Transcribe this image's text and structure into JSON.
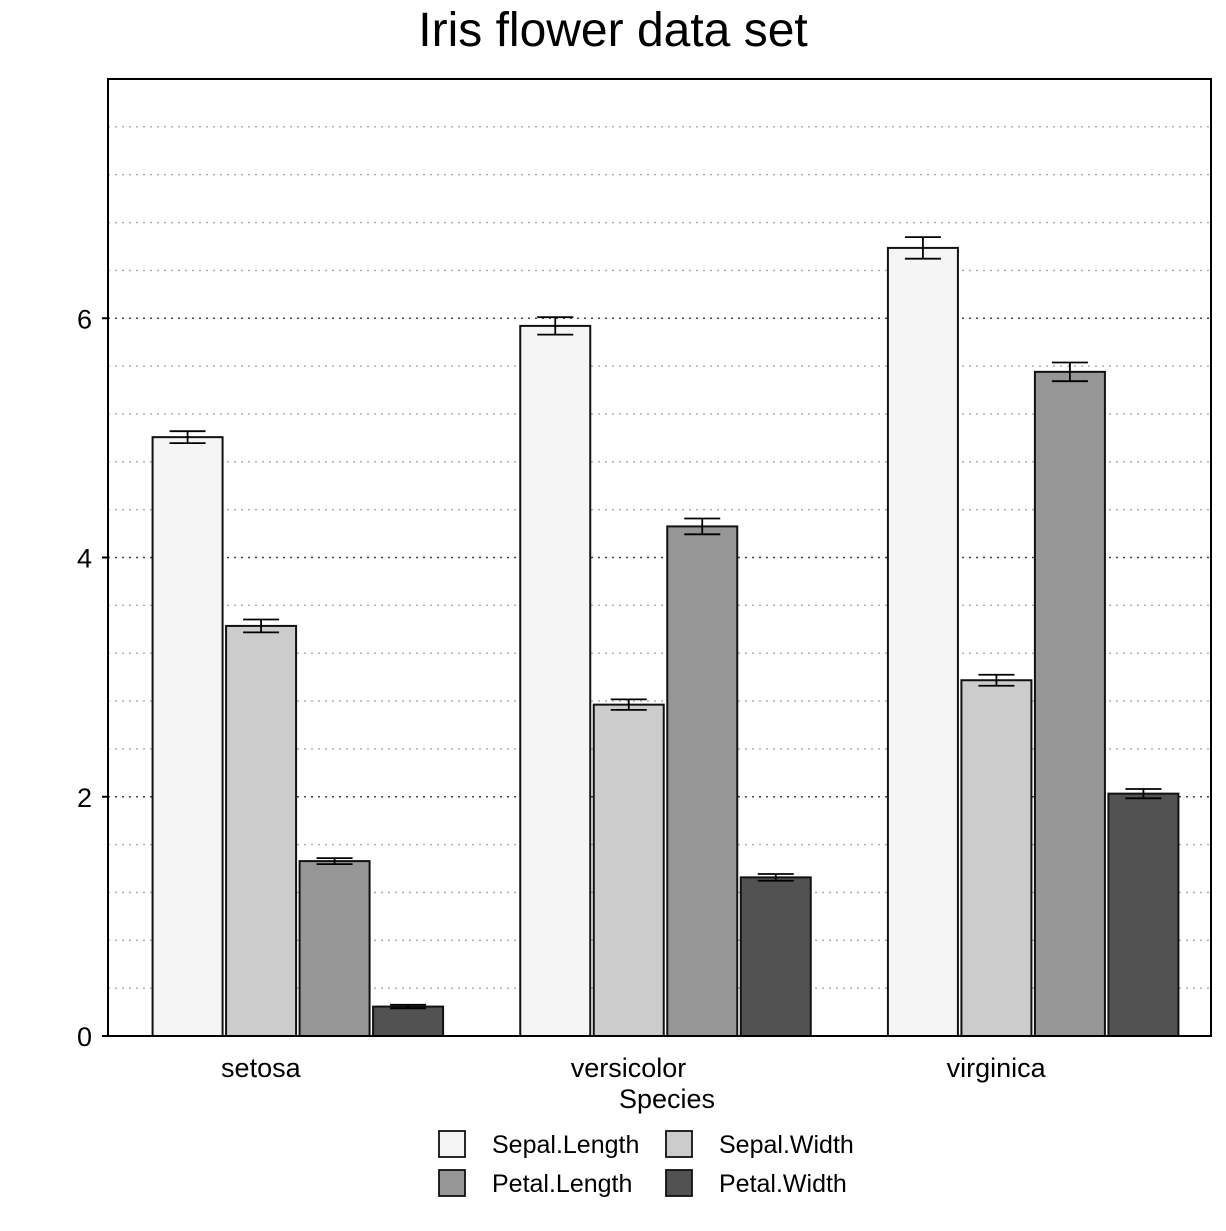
{
  "chart_data": {
    "type": "bar",
    "title": "Iris flower data set",
    "xlabel": "Species",
    "ylabel": "",
    "categories": [
      "setosa",
      "versicolor",
      "virginica"
    ],
    "ylim": [
      0,
      8
    ],
    "yticks": [
      "0",
      "2",
      "4",
      "6"
    ],
    "grid": "horizontal dotted",
    "legend_position": "bottom",
    "series": [
      {
        "name": "Sepal.Length",
        "color": "#f5f5f5",
        "values": [
          5.006,
          5.936,
          6.588
        ],
        "errors": [
          0.05,
          0.073,
          0.09
        ]
      },
      {
        "name": "Sepal.Width",
        "color": "#cccccc",
        "values": [
          3.428,
          2.77,
          2.974
        ],
        "errors": [
          0.054,
          0.044,
          0.046
        ]
      },
      {
        "name": "Petal.Length",
        "color": "#969696",
        "values": [
          1.462,
          4.26,
          5.552
        ],
        "errors": [
          0.025,
          0.066,
          0.078
        ]
      },
      {
        "name": "Petal.Width",
        "color": "#525252",
        "values": [
          0.246,
          1.326,
          2.026
        ],
        "errors": [
          0.015,
          0.028,
          0.039
        ]
      }
    ]
  }
}
